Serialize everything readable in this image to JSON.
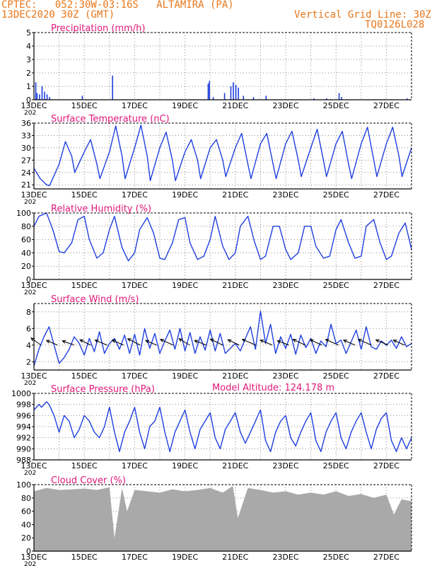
{
  "header": {
    "line1": "CPTEC:   052:30W-03:16S   ALTAMIRA (PA)",
    "line2": "13DEC2020 30Z (GMT)",
    "grid_note": "Vertical Grid Line: 30Z",
    "code": "TQ0126L028"
  },
  "colors": {
    "header": "#e8761a",
    "title": "#e0187a",
    "series": "#1f3fe0",
    "cloud": "#a9a9a9",
    "grid": "#8a8a8a"
  },
  "x_labels": [
    "13DEC",
    "15DEC",
    "17DEC",
    "19DEC",
    "21DEC",
    "23DEC",
    "25DEC",
    "27DEC"
  ],
  "x_year_stub": "202",
  "chart_data": [
    {
      "type": "bar",
      "title": "Precipitation (mm/h)",
      "ylim": [
        0,
        5
      ],
      "yticks": [
        0,
        1,
        2,
        3,
        4,
        5
      ],
      "x_range_days": [
        0,
        15
      ],
      "bars": [
        [
          0.05,
          1.3
        ],
        [
          0.1,
          0.5
        ],
        [
          0.2,
          0.4
        ],
        [
          0.3,
          1.0
        ],
        [
          0.4,
          0.6
        ],
        [
          0.5,
          0.4
        ],
        [
          0.6,
          0.2
        ],
        [
          1.9,
          0.3
        ],
        [
          3.1,
          1.8
        ],
        [
          6.9,
          1.2
        ],
        [
          6.95,
          1.4
        ],
        [
          7.1,
          0.2
        ],
        [
          7.55,
          0.5
        ],
        [
          7.8,
          1.0
        ],
        [
          7.9,
          1.3
        ],
        [
          8.0,
          1.1
        ],
        [
          8.1,
          0.9
        ],
        [
          8.3,
          0.3
        ],
        [
          8.7,
          0.2
        ],
        [
          9.2,
          0.3
        ],
        [
          11.1,
          0.1
        ],
        [
          11.6,
          0.1
        ],
        [
          12.1,
          0.5
        ],
        [
          12.2,
          0.2
        ],
        [
          14.8,
          0.1
        ]
      ],
      "grid": true
    },
    {
      "type": "line",
      "title": "Surface Temperature (nC)",
      "ylim": [
        20,
        36
      ],
      "yticks": [
        21,
        24,
        27,
        30,
        33,
        36
      ],
      "x": [
        0,
        0.25,
        0.5,
        0.62,
        1.0,
        1.25,
        1.5,
        1.62,
        2.0,
        2.25,
        2.5,
        2.62,
        3.0,
        3.25,
        3.5,
        3.62,
        4.0,
        4.25,
        4.5,
        4.62,
        5.0,
        5.25,
        5.5,
        5.62,
        6.0,
        6.25,
        6.5,
        6.62,
        7.0,
        7.25,
        7.5,
        7.62,
        8.0,
        8.25,
        8.5,
        8.62,
        9.0,
        9.25,
        9.5,
        9.62,
        10.0,
        10.25,
        10.5,
        10.62,
        11.0,
        11.25,
        11.5,
        11.62,
        12.0,
        12.25,
        12.5,
        12.62,
        13.0,
        13.25,
        13.5,
        13.62,
        14.0,
        14.25,
        14.5,
        14.62,
        15.0
      ],
      "y": [
        25,
        22.5,
        21,
        20.8,
        26,
        31.5,
        28,
        24,
        29,
        32,
        26,
        22.5,
        29,
        35.3,
        28,
        22.5,
        30,
        35.5,
        28,
        22,
        30,
        33.8,
        27,
        22,
        29,
        32,
        27,
        22.5,
        30,
        32,
        27,
        23,
        30,
        33.5,
        26,
        22.5,
        31,
        33.5,
        26,
        22.5,
        31,
        34,
        27,
        23,
        30,
        34.5,
        27,
        23,
        31,
        34,
        26,
        22.5,
        31,
        35,
        27,
        23,
        31,
        35,
        28,
        23,
        30
      ]
    },
    {
      "type": "line",
      "title": "Relative Humidity (%)",
      "ylim": [
        0,
        100
      ],
      "yticks": [
        0,
        20,
        40,
        60,
        80,
        100
      ],
      "x": [
        0,
        0.2,
        0.5,
        0.75,
        1.0,
        1.2,
        1.5,
        1.75,
        2.0,
        2.2,
        2.5,
        2.75,
        3.0,
        3.2,
        3.5,
        3.75,
        4.0,
        4.2,
        4.5,
        4.75,
        5.0,
        5.2,
        5.5,
        5.75,
        6.0,
        6.2,
        6.5,
        6.75,
        7.0,
        7.2,
        7.5,
        7.75,
        8.0,
        8.2,
        8.5,
        8.75,
        9.0,
        9.2,
        9.5,
        9.75,
        10.0,
        10.2,
        10.5,
        10.75,
        11.0,
        11.2,
        11.5,
        11.75,
        12.0,
        12.2,
        12.5,
        12.75,
        13.0,
        13.2,
        13.5,
        13.75,
        14.0,
        14.2,
        14.5,
        14.75,
        15.0
      ],
      "y": [
        80,
        95,
        100,
        75,
        42,
        40,
        55,
        90,
        95,
        60,
        32,
        40,
        75,
        95,
        48,
        28,
        40,
        75,
        93,
        70,
        32,
        30,
        55,
        90,
        93,
        55,
        30,
        35,
        60,
        95,
        50,
        30,
        40,
        80,
        95,
        58,
        30,
        35,
        80,
        80,
        45,
        30,
        40,
        80,
        80,
        50,
        32,
        35,
        75,
        90,
        55,
        32,
        35,
        80,
        90,
        55,
        30,
        35,
        70,
        85,
        45
      ]
    },
    {
      "type": "line",
      "title": "Surface Wind (m/s)",
      "ylim": [
        1,
        9
      ],
      "yticks": [
        2,
        4,
        6,
        8
      ],
      "x": [
        0,
        0.2,
        0.4,
        0.6,
        0.8,
        1.0,
        1.2,
        1.4,
        1.6,
        1.8,
        2.0,
        2.2,
        2.4,
        2.6,
        2.8,
        3.0,
        3.2,
        3.4,
        3.6,
        3.8,
        4.0,
        4.2,
        4.4,
        4.6,
        4.8,
        5.0,
        5.2,
        5.4,
        5.6,
        5.8,
        6.0,
        6.2,
        6.4,
        6.6,
        6.8,
        7.0,
        7.2,
        7.4,
        7.6,
        7.8,
        8.0,
        8.2,
        8.4,
        8.6,
        8.8,
        9.0,
        9.2,
        9.4,
        9.6,
        9.8,
        10.0,
        10.2,
        10.4,
        10.6,
        10.8,
        11.0,
        11.2,
        11.4,
        11.6,
        11.8,
        12.0,
        12.2,
        12.4,
        12.6,
        12.8,
        13.0,
        13.2,
        13.4,
        13.6,
        13.8,
        14.0,
        14.2,
        14.4,
        14.6,
        14.8,
        15.0
      ],
      "y": [
        1.5,
        3.5,
        5.0,
        6.2,
        4.0,
        1.8,
        2.5,
        3.5,
        5.0,
        4.2,
        2.8,
        4.8,
        3.2,
        5.6,
        3.0,
        4.2,
        4.8,
        3.5,
        5.2,
        3.0,
        5.3,
        2.8,
        6.0,
        3.6,
        5.4,
        3.0,
        4.5,
        5.8,
        3.5,
        6.0,
        3.3,
        5.5,
        3.0,
        5.0,
        3.4,
        5.8,
        3.3,
        5.4,
        3.0,
        3.6,
        4.2,
        3.3,
        4.8,
        6.2,
        3.5,
        8.1,
        4.2,
        6.5,
        3.0,
        5.0,
        3.6,
        5.3,
        2.9,
        5.2,
        3.7,
        4.8,
        3.0,
        4.5,
        3.8,
        6.5,
        4.2,
        4.6,
        3.0,
        4.4,
        5.8,
        3.5,
        6.2,
        3.8,
        3.5,
        4.5,
        4.0,
        4.6,
        3.6,
        5.0,
        3.8,
        4.2
      ],
      "arrows_u": [
        2.8,
        3.1,
        3.3,
        3.0,
        3.4,
        3.2,
        3.5,
        3.1,
        3.6,
        3.0,
        3.3,
        3.5,
        3.2,
        3.8,
        3.4,
        3.2,
        3.5,
        3.3,
        3.6,
        3.2,
        3.7,
        3.4,
        3.1
      ],
      "arrows_v": [
        -2.0,
        -1.3,
        -1.2,
        -1.5,
        -1.4,
        -1.4,
        -1.8,
        -1.3,
        -1.6,
        -1.8,
        -1.3,
        -1.7,
        -1.5,
        -1.6,
        -1.4,
        -1.2,
        -1.6,
        -1.5,
        -1.6,
        -1.4,
        -1.6,
        -1.5,
        -1.4
      ]
    },
    {
      "type": "line",
      "title": "Surface Pressure (hPa)",
      "ylim": [
        988,
        1000
      ],
      "yticks": [
        988,
        990,
        992,
        994,
        996,
        998,
        1000
      ],
      "x": [
        0,
        0.2,
        0.3,
        0.5,
        0.6,
        0.8,
        1.0,
        1.2,
        1.4,
        1.6,
        1.8,
        2.0,
        2.2,
        2.4,
        2.6,
        2.8,
        3.0,
        3.2,
        3.4,
        3.6,
        3.8,
        4.0,
        4.2,
        4.4,
        4.6,
        4.8,
        5.0,
        5.2,
        5.4,
        5.6,
        5.8,
        6.0,
        6.2,
        6.4,
        6.6,
        6.8,
        7.0,
        7.2,
        7.4,
        7.6,
        7.8,
        8.0,
        8.2,
        8.4,
        8.6,
        8.8,
        9.0,
        9.2,
        9.4,
        9.6,
        9.8,
        10.0,
        10.2,
        10.4,
        10.6,
        10.8,
        11.0,
        11.2,
        11.4,
        11.6,
        11.8,
        12.0,
        12.2,
        12.4,
        12.6,
        12.8,
        13.0,
        13.2,
        13.4,
        13.6,
        13.8,
        14.0,
        14.2,
        14.4,
        14.6,
        14.8,
        15.0
      ],
      "y": [
        997,
        998,
        997.5,
        998.5,
        998,
        996,
        993,
        996,
        995,
        992,
        993.5,
        996,
        995,
        993,
        992,
        994,
        997.5,
        993,
        989.5,
        993,
        995,
        997.5,
        993,
        990,
        994,
        995,
        997.5,
        993,
        989.5,
        993,
        995,
        997,
        993,
        990,
        993.5,
        995,
        996.5,
        992,
        990,
        993.5,
        995,
        996.5,
        993,
        991,
        993,
        995,
        997,
        991.5,
        989.5,
        993,
        995,
        996,
        992,
        990.5,
        993,
        995,
        996.5,
        991.5,
        989.5,
        993,
        995,
        996.5,
        992,
        990,
        993,
        995,
        996.5,
        993,
        990,
        993.5,
        995.5,
        996.5,
        991.5,
        989.5,
        992,
        990,
        992
      ]
    },
    {
      "type": "area",
      "title": "Cloud Cover (%)",
      "ylim": [
        0,
        100
      ],
      "yticks": [
        0,
        20,
        40,
        60,
        80,
        100
      ],
      "x": [
        0,
        0.5,
        1.0,
        1.5,
        2.0,
        2.5,
        3.0,
        3.2,
        3.5,
        3.7,
        4.0,
        4.5,
        5.0,
        5.5,
        6.0,
        6.5,
        7.0,
        7.5,
        7.9,
        8.1,
        8.5,
        9.0,
        9.5,
        10.0,
        10.5,
        11.0,
        11.5,
        12.0,
        12.5,
        13.0,
        13.5,
        14.0,
        14.3,
        14.6,
        15.0
      ],
      "y": [
        90,
        95,
        92,
        93,
        94,
        92,
        96,
        20,
        95,
        60,
        92,
        90,
        88,
        93,
        90,
        92,
        95,
        88,
        98,
        50,
        95,
        92,
        88,
        90,
        85,
        88,
        85,
        90,
        83,
        86,
        80,
        85,
        55,
        78,
        75
      ],
      "extra_labels": {
        "model_altitude": "Model Altitude: 124.178  m"
      }
    }
  ]
}
